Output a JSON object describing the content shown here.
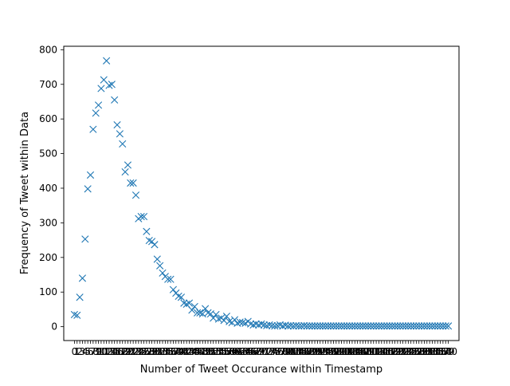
{
  "chart_data": {
    "type": "scatter",
    "title": "",
    "xlabel": "Number of Tweet Occurance within Timestamp",
    "ylabel": "Frequency of Tweet within Data",
    "xlim": [
      -4,
      144
    ],
    "ylim": [
      -40,
      810
    ],
    "y_ticks": [
      0,
      100,
      200,
      300,
      400,
      500,
      600,
      700,
      800
    ],
    "grid": false,
    "legend": "none",
    "marker": "x",
    "marker_color": "#1f77b4",
    "x_tick_labels_visible": "0 2 5 7 10 12 15 ... 125 (overlapping, illegible)",
    "series": [
      {
        "x": [
          0,
          1,
          2,
          3,
          4,
          5,
          6,
          7,
          8,
          9,
          10,
          11,
          12,
          13,
          14,
          15,
          16,
          17,
          18,
          19,
          20,
          21,
          22,
          23,
          24,
          25,
          26,
          27,
          28,
          29,
          30,
          31,
          32,
          33,
          34,
          35,
          36,
          37,
          38,
          39,
          40,
          41,
          42,
          43,
          44,
          45,
          46,
          47,
          48,
          49,
          50,
          51,
          52,
          53,
          54,
          55,
          56,
          57,
          58,
          59,
          60,
          61,
          62,
          63,
          64,
          65,
          66,
          67,
          68,
          69,
          70,
          71,
          72,
          73,
          74,
          75,
          76,
          77,
          78,
          79,
          80,
          81,
          82,
          83,
          84,
          85,
          86,
          87,
          88,
          89,
          90,
          91,
          92,
          93,
          94,
          95,
          96,
          97,
          98,
          99,
          100,
          101,
          102,
          103,
          104,
          105,
          106,
          107,
          108,
          109,
          110,
          111,
          112,
          113,
          114,
          115,
          116,
          117,
          118,
          119,
          120,
          121,
          122,
          123,
          124,
          125,
          126,
          127,
          128,
          129,
          130,
          131,
          132,
          133,
          134,
          135,
          136,
          137,
          138,
          139,
          140
        ],
        "y": [
          35,
          33,
          85,
          140,
          253,
          398,
          438,
          570,
          617,
          640,
          688,
          713,
          768,
          697,
          700,
          655,
          583,
          557,
          528,
          447,
          467,
          415,
          415,
          380,
          312,
          318,
          318,
          275,
          249,
          246,
          237,
          195,
          176,
          155,
          145,
          137,
          137,
          107,
          97,
          88,
          85,
          68,
          65,
          68,
          48,
          58,
          40,
          40,
          37,
          52,
          40,
          37,
          25,
          35,
          22,
          25,
          18,
          30,
          15,
          12,
          20,
          10,
          13,
          12,
          10,
          15,
          8,
          5,
          8,
          5,
          8,
          5,
          3,
          5,
          3,
          2,
          3,
          5,
          2,
          4,
          2,
          3,
          2,
          3,
          2,
          2,
          3,
          2,
          2,
          2,
          2,
          2,
          2,
          2,
          2,
          2,
          2,
          2,
          2,
          2,
          2,
          2,
          2,
          2,
          2,
          2,
          2,
          2,
          2,
          2,
          2,
          2,
          2,
          2,
          2,
          2,
          2,
          2,
          2,
          2,
          2,
          2,
          2,
          2,
          2,
          2,
          2,
          2,
          2,
          2,
          2,
          2,
          2,
          2,
          2,
          2,
          2,
          2,
          2,
          2,
          2
        ]
      }
    ]
  }
}
